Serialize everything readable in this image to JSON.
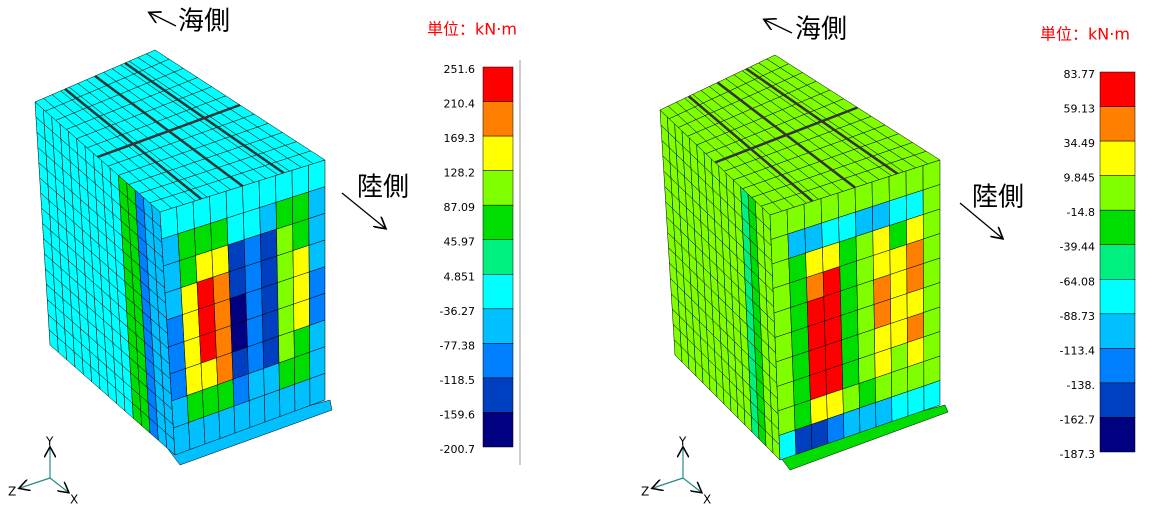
{
  "panels": [
    {
      "sea_label": "海側",
      "land_label": "陸側",
      "unit": "単位：kN·m",
      "legend": [
        "251.6",
        "210.4",
        "169.3",
        "128.2",
        "87.09",
        "45.97",
        "4.851",
        "-36.27",
        "-77.38",
        "-118.5",
        "-159.6",
        "-200.7"
      ],
      "axes": {
        "y": "Y",
        "z": "Z",
        "x": "X"
      }
    },
    {
      "sea_label": "海側",
      "land_label": "陸側",
      "unit": "単位：kN·m",
      "legend": [
        "83.77",
        "59.13",
        "34.49",
        "9.845",
        "-14.8",
        "-39.44",
        "-64.08",
        "-88.73",
        "-113.4",
        "-138.",
        "-162.7",
        "-187.3"
      ],
      "axes": {
        "y": "Y",
        "z": "Z",
        "x": "X"
      }
    }
  ]
}
